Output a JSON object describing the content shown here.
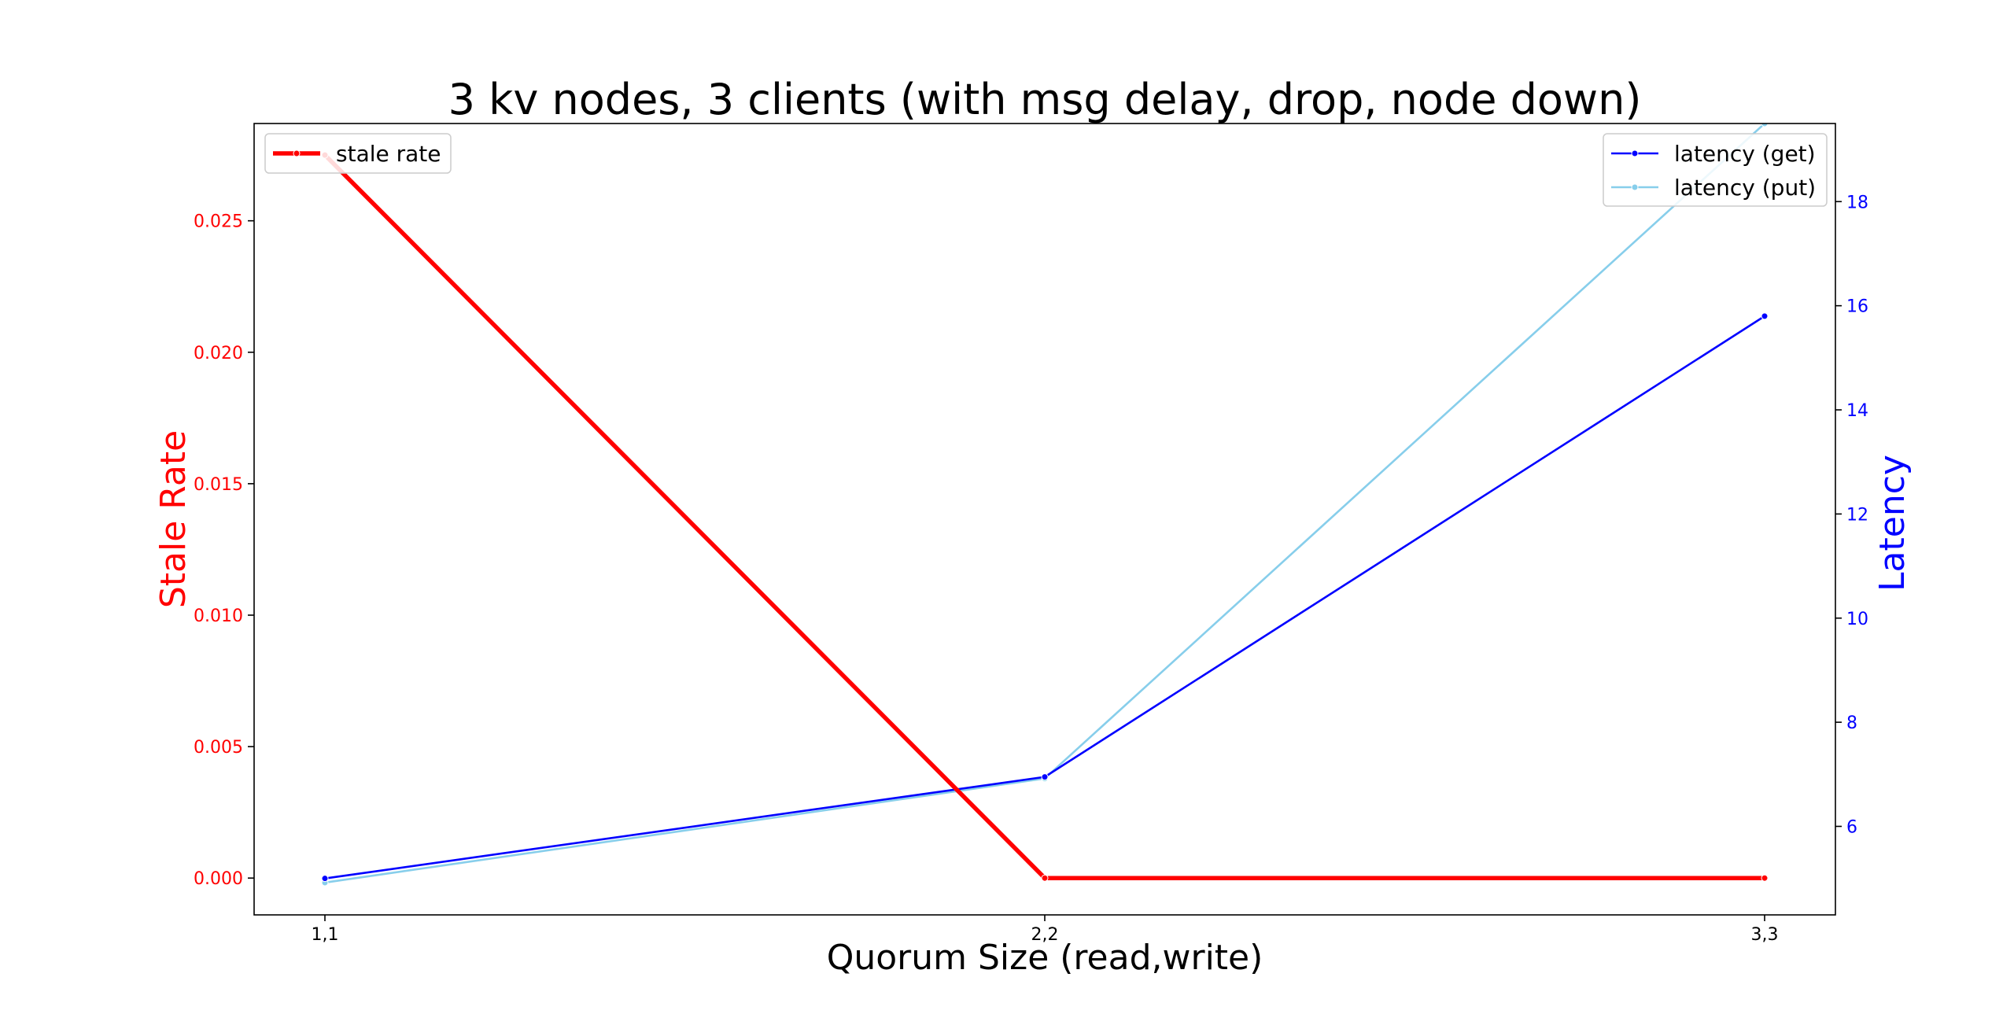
{
  "chart_data": {
    "type": "line",
    "title": "3 kv nodes, 3 clients (with msg delay, drop, node down)",
    "xlabel": "Quorum Size (read,write)",
    "ylabel_left": "Stale Rate",
    "ylabel_right": "Latency",
    "categories": [
      "1,1",
      "2,2",
      "3,3"
    ],
    "left_axis": {
      "ylim": [
        -0.0014,
        0.0287
      ],
      "ticks": [
        "0.000",
        "0.005",
        "0.010",
        "0.015",
        "0.020",
        "0.025"
      ],
      "color": "#ff0000"
    },
    "right_axis": {
      "ylim": [
        4.3,
        19.5
      ],
      "ticks": [
        "6",
        "8",
        "10",
        "12",
        "14",
        "16",
        "18"
      ],
      "color": "#0000ff"
    },
    "series": [
      {
        "name": "stale rate",
        "axis": "left",
        "values": [
          0.0275,
          0.0,
          0.0
        ],
        "color": "#ff0000"
      },
      {
        "name": "latency (get)",
        "axis": "right",
        "values": [
          5.0,
          6.95,
          15.8
        ],
        "color": "#0000ff"
      },
      {
        "name": "latency (put)",
        "axis": "right",
        "values": [
          4.92,
          6.92,
          19.5
        ],
        "color": "#87ceeb"
      }
    ],
    "legends": [
      {
        "placement": "upper left",
        "series": [
          "stale rate"
        ]
      },
      {
        "placement": "upper right",
        "series": [
          "latency (get)",
          "latency (put)"
        ]
      }
    ],
    "grid": false
  }
}
